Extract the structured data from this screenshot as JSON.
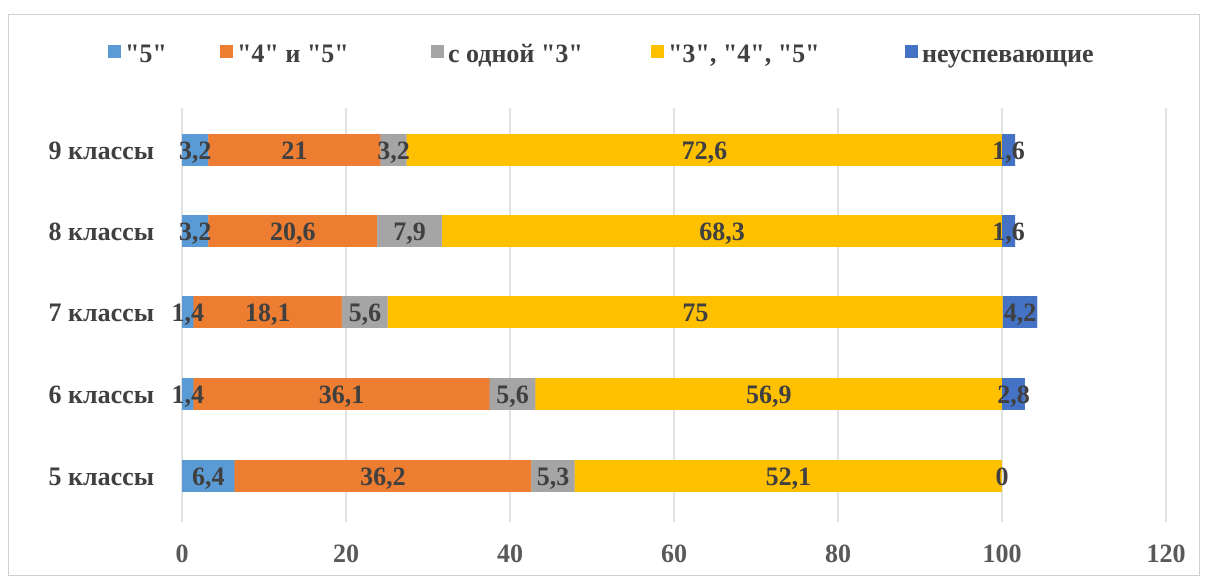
{
  "chart_data": {
    "type": "bar",
    "orientation": "horizontal",
    "stacked": true,
    "categories": [
      "5 классы",
      "6 классы",
      "7 классы",
      "8 классы",
      "9 классы"
    ],
    "series": [
      {
        "name": "\"5\"",
        "color": "#5B9BD5",
        "values": [
          6.4,
          1.4,
          1.4,
          3.2,
          3.2
        ],
        "labels": [
          "6,4",
          "1,4",
          "1,4",
          "3,2",
          "3,2"
        ]
      },
      {
        "name": "\"4\" и  \"5\"",
        "color": "#ED7D31",
        "values": [
          36.2,
          36.1,
          18.1,
          20.6,
          21
        ],
        "labels": [
          "36,2",
          "36,1",
          "18,1",
          "20,6",
          "21"
        ]
      },
      {
        "name": "с одной \"3\"",
        "color": "#A5A5A5",
        "values": [
          5.3,
          5.6,
          5.6,
          7.9,
          3.2
        ],
        "labels": [
          "5,3",
          "5,6",
          "5,6",
          "7,9",
          "3,2"
        ]
      },
      {
        "name": "\"3\", \"4\", \"5\"",
        "color": "#FFC000",
        "values": [
          52.1,
          56.9,
          75,
          68.3,
          72.6
        ],
        "labels": [
          "52,1",
          "56,9",
          "75",
          "68,3",
          "72,6"
        ]
      },
      {
        "name": "неуспевающие",
        "color": "#4472C4",
        "values": [
          0,
          2.8,
          4.2,
          1.6,
          1.6
        ],
        "labels": [
          "0",
          "2,8",
          "4,2",
          "1,6",
          "1,6"
        ]
      }
    ],
    "xlim": [
      0,
      120
    ],
    "x_ticks": [
      "0",
      "20",
      "40",
      "60",
      "80",
      "100",
      "120"
    ],
    "grid": "vertical",
    "legend_position": "top",
    "gridline_color": "#d9d9d9"
  }
}
